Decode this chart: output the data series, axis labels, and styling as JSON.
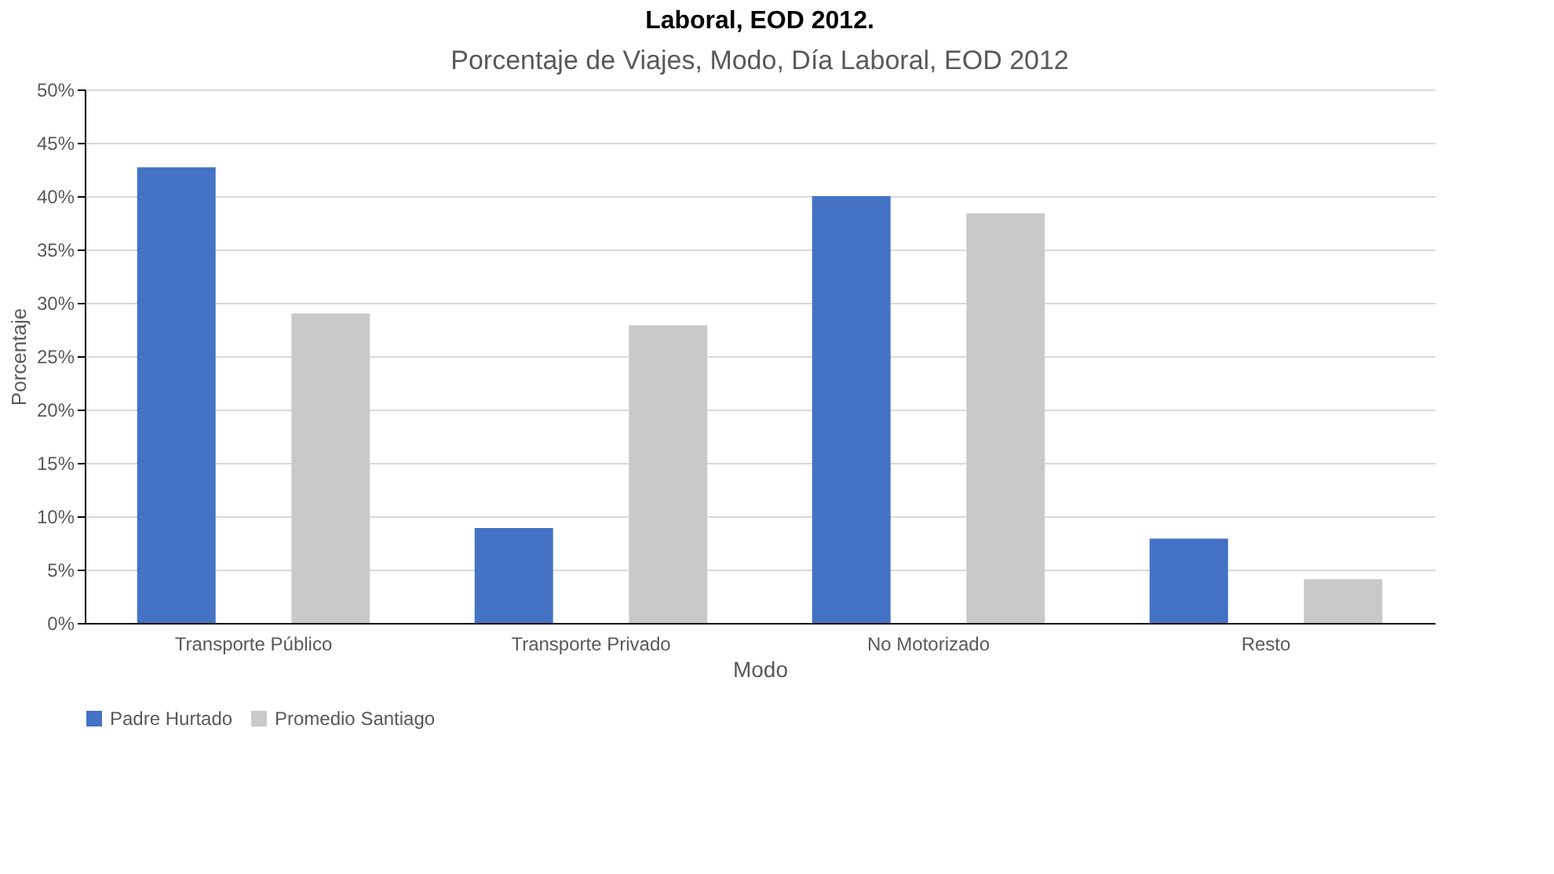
{
  "chart_data": {
    "type": "bar",
    "title": "Porcentaje de Viajes, Modo, Día Laboral, EOD 2012",
    "annotations": [
      "Laboral, EOD 2012."
    ],
    "xlabel": "Modo",
    "ylabel": "Porcentaje",
    "categories": [
      "Transporte Público",
      "Transporte Privado",
      "No Motorizado",
      "Resto"
    ],
    "series": [
      {
        "name": "Padre Hurtado",
        "color": "#4472c4",
        "values": [
          42.7,
          8.9,
          40.0,
          7.9
        ]
      },
      {
        "name": "Promedio Santiago",
        "color": "#c9c9c9",
        "values": [
          29.0,
          27.9,
          38.4,
          4.1
        ]
      }
    ],
    "ylim": [
      0,
      50
    ],
    "yticks": [
      {
        "value": 0,
        "label": "0%"
      },
      {
        "value": 5,
        "label": "5%"
      },
      {
        "value": 10,
        "label": "10%"
      },
      {
        "value": 15,
        "label": "15%"
      },
      {
        "value": 20,
        "label": "20%"
      },
      {
        "value": 25,
        "label": "25%"
      },
      {
        "value": 30,
        "label": "30%"
      },
      {
        "value": 35,
        "label": "35%"
      },
      {
        "value": 40,
        "label": "40%"
      },
      {
        "value": 45,
        "label": "45%"
      },
      {
        "value": 50,
        "label": "50%"
      }
    ],
    "grid": "y",
    "legend": "bottom"
  }
}
